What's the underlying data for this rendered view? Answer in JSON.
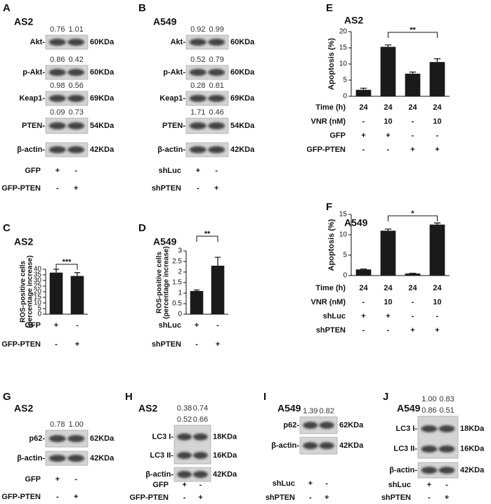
{
  "blots": [
    {
      "panel": "A",
      "title": "AS2",
      "bands": [
        {
          "labels": [
            "Akt-"
          ],
          "sizes": [
            "60KDa"
          ],
          "quant": [
            [
              "0.76",
              "1.01"
            ]
          ]
        },
        {
          "labels": [
            "p-Akt-"
          ],
          "sizes": [
            "60KDa"
          ],
          "quant": [
            [
              "0.86",
              "0.42"
            ]
          ]
        },
        {
          "labels": [
            "Keap1-"
          ],
          "sizes": [
            "69KDa"
          ],
          "quant": [
            [
              "0.98",
              "0.56"
            ]
          ]
        },
        {
          "labels": [
            "PTEN-"
          ],
          "sizes": [
            "54KDa"
          ],
          "quant": [
            [
              "0.09",
              "0.73"
            ]
          ]
        },
        {
          "labels": [
            "β-actin-"
          ],
          "sizes": [
            "42KDa"
          ],
          "quant": []
        }
      ],
      "conditions": [
        {
          "label": "GFP",
          "signs": [
            "+",
            "-"
          ]
        },
        {
          "label": "GFP-PTEN",
          "signs": [
            "-",
            "+"
          ]
        }
      ]
    },
    {
      "panel": "B",
      "title": "A549",
      "bands": [
        {
          "labels": [
            "Akt-"
          ],
          "sizes": [
            "60KDa"
          ],
          "quant": [
            [
              "0.92",
              "0.99"
            ]
          ]
        },
        {
          "labels": [
            "p-Akt-"
          ],
          "sizes": [
            "60KDa"
          ],
          "quant": [
            [
              "0.52",
              "0.79"
            ]
          ]
        },
        {
          "labels": [
            "Keap1-"
          ],
          "sizes": [
            "69KDa"
          ],
          "quant": [
            [
              "0.28",
              "0.81"
            ]
          ]
        },
        {
          "labels": [
            "PTEN-"
          ],
          "sizes": [
            "54KDa"
          ],
          "quant": [
            [
              "1.71",
              "0.46"
            ]
          ]
        },
        {
          "labels": [
            "β-actin-"
          ],
          "sizes": [
            "42KDa"
          ],
          "quant": []
        }
      ],
      "conditions": [
        {
          "label": "shLuc",
          "signs": [
            "+",
            "-"
          ]
        },
        {
          "label": "shPTEN",
          "signs": [
            "-",
            "+"
          ]
        }
      ]
    },
    {
      "panel": "G",
      "title": "AS2",
      "bands": [
        {
          "labels": [
            "p62-"
          ],
          "sizes": [
            "62KDa"
          ],
          "quant": [
            [
              "0.78",
              "1.00"
            ]
          ]
        },
        {
          "labels": [
            "β-actin-"
          ],
          "sizes": [
            "42KDa"
          ],
          "quant": []
        }
      ],
      "conditions": [
        {
          "label": "GFP",
          "signs": [
            "+",
            "-"
          ]
        },
        {
          "label": "GFP-PTEN",
          "signs": [
            "-",
            "+"
          ]
        }
      ]
    },
    {
      "panel": "H",
      "title": "AS2",
      "bands": [
        {
          "labels": [
            "LC3 I-",
            "LC3 II-"
          ],
          "sizes": [
            "18KDa",
            "16KDa"
          ],
          "quant": [
            [
              "0.38",
              "0.74"
            ],
            [
              "0.52",
              "0.66"
            ]
          ]
        },
        {
          "labels": [
            "β-actin-"
          ],
          "sizes": [
            "42KDa"
          ],
          "quant": []
        }
      ],
      "conditions": [
        {
          "label": "GFP",
          "signs": [
            "+",
            "-"
          ]
        },
        {
          "label": "GFP-PTEN",
          "signs": [
            "-",
            "+"
          ]
        }
      ]
    },
    {
      "panel": "I",
      "title": "A549",
      "bands": [
        {
          "labels": [
            "p62-"
          ],
          "sizes": [
            "62KDa"
          ],
          "quant": [
            [
              "1.39",
              "0.82"
            ]
          ]
        },
        {
          "labels": [
            "β-actin-"
          ],
          "sizes": [
            "42KDa"
          ],
          "quant": []
        }
      ],
      "conditions": [
        {
          "label": "shLuc",
          "signs": [
            "+",
            "-"
          ]
        },
        {
          "label": "shPTEN",
          "signs": [
            "-",
            "+"
          ]
        }
      ]
    },
    {
      "panel": "J",
      "title": "A549",
      "bands": [
        {
          "labels": [
            "LC3 I-",
            "LC3 II-"
          ],
          "sizes": [
            "18KDa",
            "16KDa"
          ],
          "quant": [
            [
              "1.00",
              "0.83"
            ],
            [
              "0.86",
              "0.51"
            ]
          ]
        },
        {
          "labels": [
            "β-actin-"
          ],
          "sizes": [
            "42KDa"
          ],
          "quant": []
        }
      ],
      "conditions": [
        {
          "label": "shLuc",
          "signs": [
            "+",
            "-"
          ]
        },
        {
          "label": "shPTEN",
          "signs": [
            "-",
            "+"
          ]
        }
      ]
    }
  ],
  "chart_data": [
    {
      "type": "bar",
      "panel": "C",
      "title": "AS2",
      "ylabel": [
        "ROS-positive cells",
        "(percentage increase)"
      ],
      "values": [
        37,
        34
      ],
      "errors": [
        3,
        3
      ],
      "color": "#1a1a1a",
      "significance": "***",
      "ylim": [
        0,
        40
      ],
      "yticks": [
        0,
        5,
        10,
        15,
        20,
        25,
        30,
        35,
        40
      ],
      "conditions": [
        {
          "label": "GFP",
          "signs": [
            "+",
            "-"
          ]
        },
        {
          "label": "GFP-PTEN",
          "signs": [
            "-",
            "+"
          ]
        }
      ]
    },
    {
      "type": "bar",
      "panel": "D",
      "title": "A549",
      "ylabel": [
        "ROS-positive cells",
        "(percentage increase)"
      ],
      "values": [
        1.1,
        2.3
      ],
      "errors": [
        0.05,
        0.4
      ],
      "color": "#1a1a1a",
      "significance": "**",
      "ylim": [
        0,
        3
      ],
      "yticks": [
        0,
        0.5,
        1,
        1.5,
        2,
        2.5,
        3
      ],
      "conditions": [
        {
          "label": "shLuc",
          "signs": [
            "+",
            "-"
          ]
        },
        {
          "label": "shPTEN",
          "signs": [
            "-",
            "+"
          ]
        }
      ]
    },
    {
      "type": "bar",
      "panel": "E",
      "title": "AS2",
      "ylabel": [
        "Apoptosis (%)"
      ],
      "values": [
        2,
        15.3,
        7,
        10.6
      ],
      "errors": [
        0.5,
        0.6,
        0.5,
        1
      ],
      "color": "#1a1a1a",
      "significance": "**",
      "ylim": [
        0,
        20
      ],
      "yticks": [
        0,
        5,
        10,
        15,
        20
      ],
      "conditions": [
        {
          "label": "Time (h)",
          "signs": [
            "24",
            "24",
            "24",
            "24"
          ]
        },
        {
          "label": "VNR (nM)",
          "signs": [
            "-",
            "10",
            "-",
            "10"
          ]
        },
        {
          "label": "GFP",
          "signs": [
            "+",
            "+",
            "-",
            "-"
          ]
        },
        {
          "label": "GFP-PTEN",
          "signs": [
            "-",
            "-",
            "+",
            "+"
          ]
        }
      ]
    },
    {
      "type": "bar",
      "panel": "F",
      "title": "A549",
      "ylabel": [
        "Apoptosis (%)"
      ],
      "values": [
        1.5,
        11,
        0.5,
        12.5
      ],
      "errors": [
        0.1,
        0.4,
        0.05,
        0.4
      ],
      "color": "#1a1a1a",
      "significance": "*",
      "ylim": [
        0,
        15
      ],
      "yticks": [
        0,
        5,
        10,
        15
      ],
      "conditions": [
        {
          "label": "Time (h)",
          "signs": [
            "24",
            "24",
            "24",
            "24"
          ]
        },
        {
          "label": "VNR (nM)",
          "signs": [
            "-",
            "10",
            "-",
            "10"
          ]
        },
        {
          "label": "shLuc",
          "signs": [
            "+",
            "+",
            "-",
            "-"
          ]
        },
        {
          "label": "shPTEN",
          "signs": [
            "-",
            "-",
            "+",
            "+"
          ]
        }
      ]
    }
  ]
}
